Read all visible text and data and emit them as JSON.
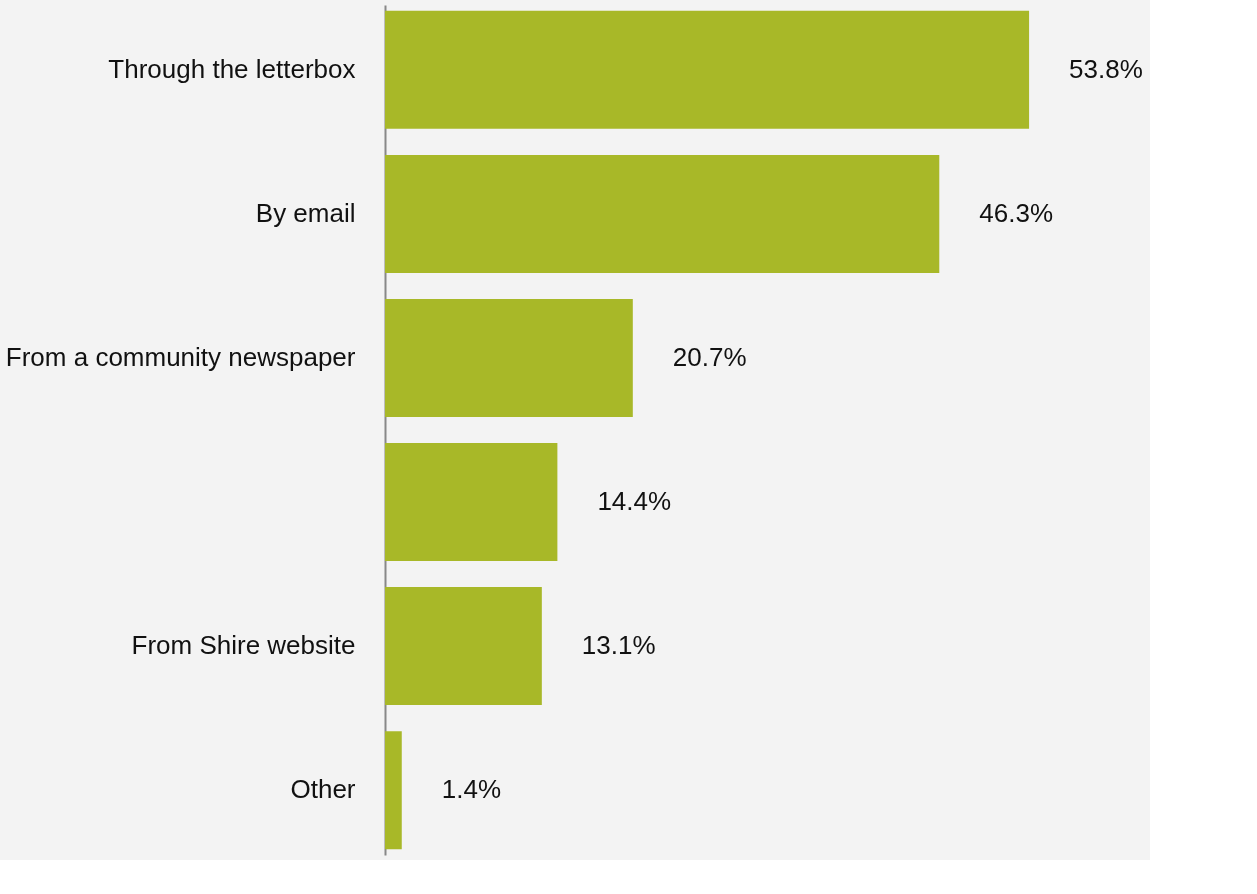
{
  "chart_data": {
    "type": "bar",
    "orientation": "horizontal",
    "categories": [
      "Through the letterbox",
      "By email",
      "From a community newspaper",
      null,
      "From Shire website",
      "Other"
    ],
    "values": [
      53.8,
      46.3,
      20.7,
      14.4,
      13.1,
      1.4
    ],
    "value_labels": [
      "53.8%",
      "46.3%",
      "20.7%",
      "14.4%",
      "13.1%",
      "1.4%"
    ],
    "color": "#a8b828",
    "grid": false
  }
}
